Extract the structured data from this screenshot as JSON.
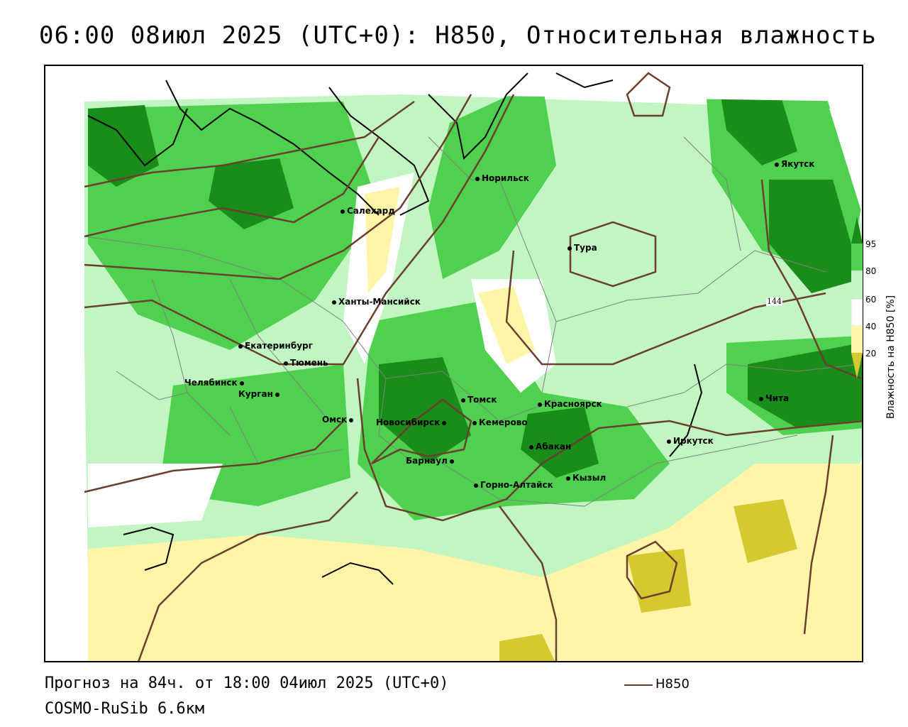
{
  "title": "06:00 08июл 2025 (UTC+0): H850, Относительная влажность",
  "forecast_text": "Прогноз на 84ч. от 18:00 04июл 2025 (UTC+0)",
  "model_text": "COSMO-RuSib 6.6км",
  "line_legend_label": "H850",
  "colorbar": {
    "title": "Влажность на H850 [%]",
    "ticks": [
      "95",
      "80",
      "60",
      "40",
      "20"
    ],
    "colors": [
      "#1a8c1a",
      "#4fd14f",
      "#c1f5c1",
      "#ffffff",
      "#fff5a8",
      "#d6c830"
    ]
  },
  "isoline_label": "144",
  "colors": {
    "isoline": "#6b3e2e",
    "coast": "#000000",
    "border": "#808080"
  },
  "cities": [
    {
      "name": "Якутск"
    },
    {
      "name": "Норильск"
    },
    {
      "name": "Салехард"
    },
    {
      "name": "Тура"
    },
    {
      "name": "Ханты-Мансийск"
    },
    {
      "name": "Екатеринбург"
    },
    {
      "name": "Тюмень"
    },
    {
      "name": "Челябинск"
    },
    {
      "name": "Курган"
    },
    {
      "name": "Омск"
    },
    {
      "name": "Томск"
    },
    {
      "name": "Новосибирск"
    },
    {
      "name": "Кемерово"
    },
    {
      "name": "Красноярск"
    },
    {
      "name": "Абакан"
    },
    {
      "name": "Барнаул"
    },
    {
      "name": "Горно-Алтайск"
    },
    {
      "name": "Кызыл"
    },
    {
      "name": "Иркутск"
    },
    {
      "name": "Чита"
    }
  ]
}
